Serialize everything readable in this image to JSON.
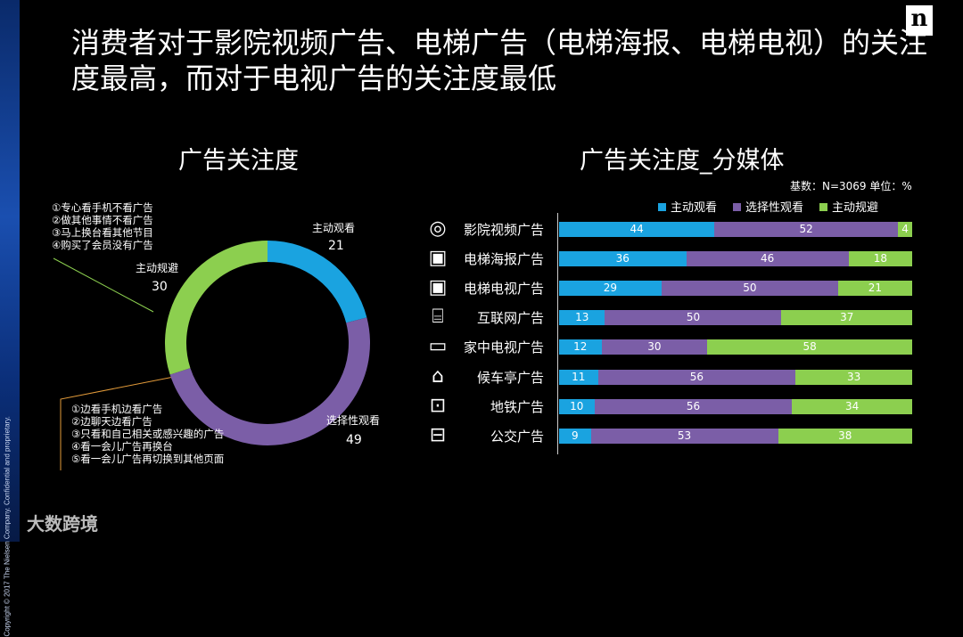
{
  "copyright": "Copyright © 2017 The Nielsen Company. Confidential and proprietary.",
  "logo": "n",
  "title": "消费者对于影院视频广告、电梯广告（电梯海报、电梯电视）的关注度最高，而对于电视广告的关注度最低",
  "watermark": "大数跨境",
  "left_chart_title": "广告关注度",
  "right_chart_title": "广告关注度_分媒体",
  "base_note": "基数：N=3069   单位：%",
  "anno_top": [
    "①专心看手机不看广告",
    "②做其他事情不看广告",
    "③马上换台看其他节目",
    "④购买了会员没有广告"
  ],
  "anno_bottom": [
    "①边看手机边看广告",
    "②边聊天边看广告",
    "③只看和自己相关或感兴趣的广告",
    "④看一会儿广告再换台",
    "⑤看一会儿广告再切换到其他页面"
  ],
  "colors": {
    "active_watch": "#1aa3e0",
    "selective_watch": "#7b5ea7",
    "active_avoid": "#8ccf4f"
  },
  "chart_data": [
    {
      "type": "pie",
      "title": "广告关注度",
      "categories": [
        "主动观看",
        "选择性观看",
        "主动规避"
      ],
      "values": [
        21,
        49,
        30
      ]
    },
    {
      "type": "bar",
      "orientation": "horizontal",
      "stacked": true,
      "title": "广告关注度_分媒体",
      "categories": [
        "影院视频广告",
        "电梯海报广告",
        "电梯电视广告",
        "互联网广告",
        "家中电视广告",
        "候车亭广告",
        "地铁广告",
        "公交广告"
      ],
      "series": [
        {
          "name": "主动观看",
          "values": [
            44,
            36,
            29,
            13,
            12,
            11,
            10,
            9
          ]
        },
        {
          "name": "选择性观看",
          "values": [
            52,
            46,
            50,
            50,
            30,
            56,
            56,
            53
          ]
        },
        {
          "name": "主动规避",
          "values": [
            4,
            18,
            21,
            37,
            58,
            33,
            34,
            38
          ]
        }
      ],
      "legend": "top",
      "xlim": [
        0,
        100
      ],
      "icons": [
        "film-reel-icon",
        "elevator-poster-icon",
        "elevator-tv-icon",
        "computer-wifi-icon",
        "home-tv-icon",
        "bus-stop-icon",
        "subway-icon",
        "bus-icon"
      ]
    }
  ]
}
